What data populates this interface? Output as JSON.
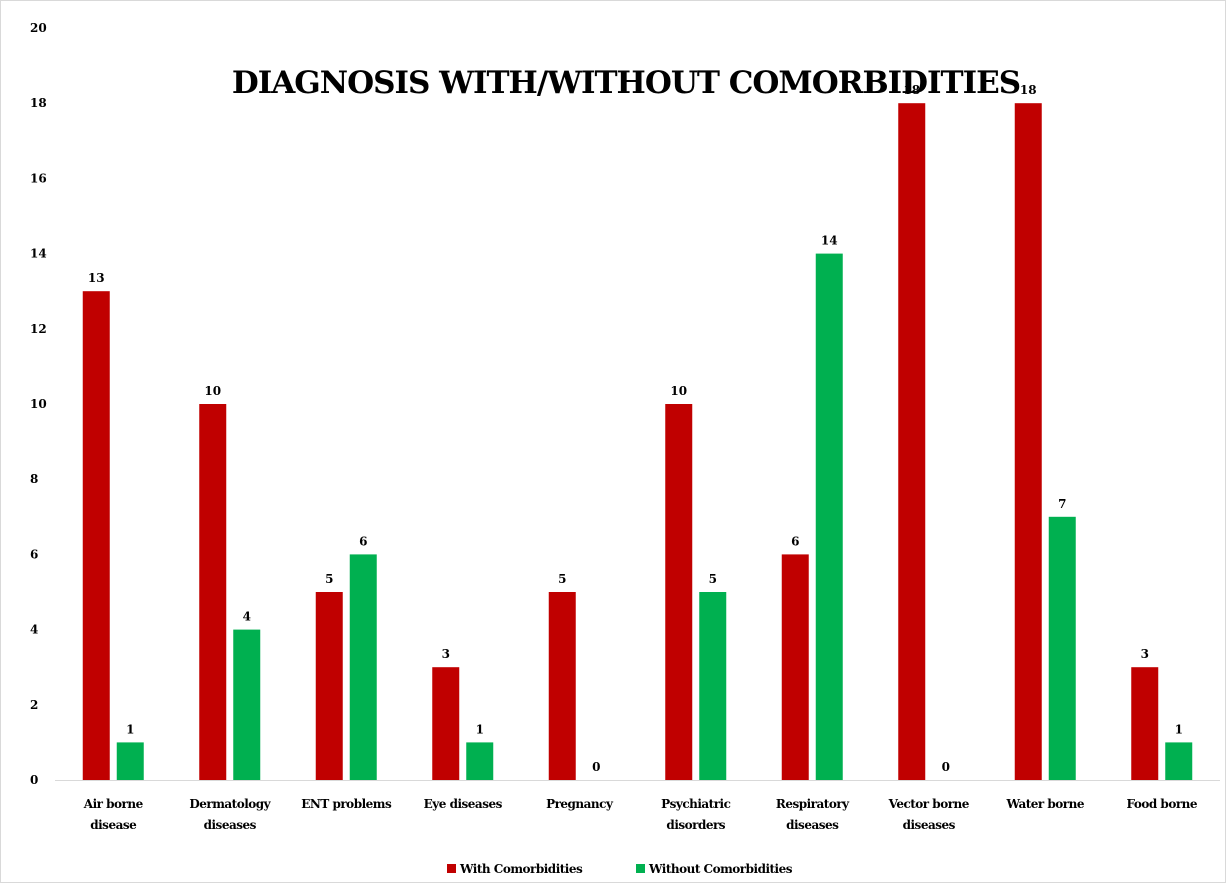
{
  "chart_data": {
    "type": "bar",
    "title": "DIAGNOSIS WITH/WITHOUT COMORBIDITIES",
    "xlabel": "",
    "ylabel": "",
    "ylim": [
      0,
      20
    ],
    "yticks": [
      "0",
      "2",
      "4",
      "6",
      "8",
      "10",
      "12",
      "14",
      "16",
      "18",
      "20"
    ],
    "categories": [
      [
        "Air borne",
        "disease"
      ],
      [
        "Dermatology",
        "diseases"
      ],
      [
        "ENT problems"
      ],
      [
        "Eye diseases"
      ],
      [
        "Pregnancy"
      ],
      [
        "Psychiatric",
        "disorders"
      ],
      [
        "Respiratory",
        "diseases"
      ],
      [
        "Vector borne",
        "diseases"
      ],
      [
        "Water borne"
      ],
      [
        "Food borne"
      ]
    ],
    "series": [
      {
        "name": "With Comorbidities",
        "color": "#c00000",
        "values": [
          13,
          10,
          5,
          3,
          5,
          10,
          6,
          18,
          18,
          3
        ]
      },
      {
        "name": "Without Comorbidities",
        "color": "#00b050",
        "values": [
          1,
          4,
          6,
          1,
          0,
          5,
          14,
          0,
          7,
          1
        ]
      }
    ],
    "grid": false,
    "legend_position": "bottom",
    "data_labels": true
  }
}
